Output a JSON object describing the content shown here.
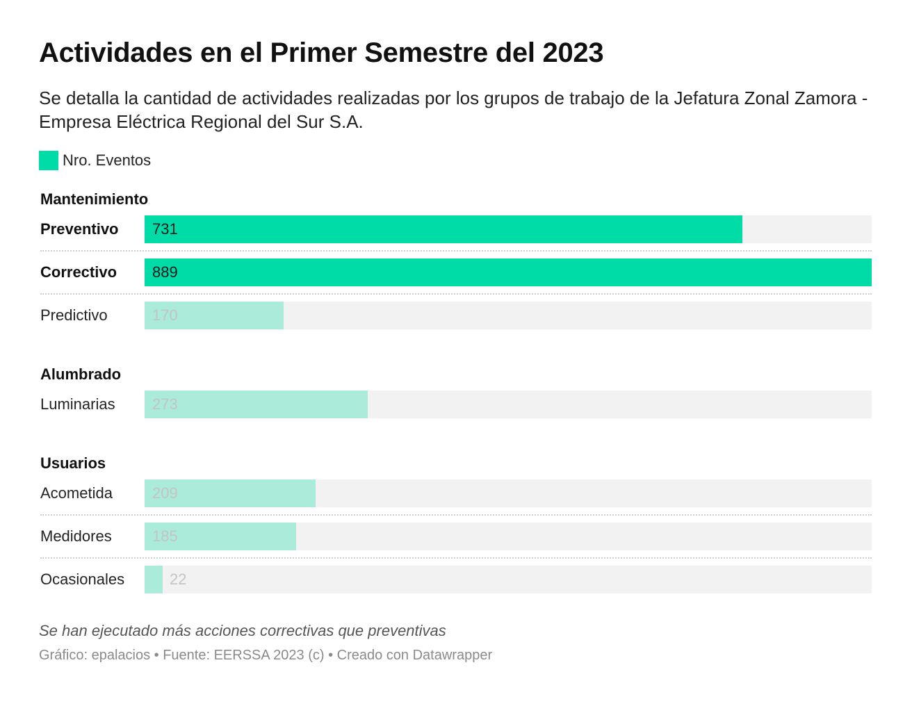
{
  "title": "Actividades en el Primer Semestre del 2023",
  "subtitle": "Se detalla la cantidad de actividades realizadas por los grupos de trabajo de la Jefatura Zonal Zamora - Empresa Eléctrica Regional del Sur S.A.",
  "legend": {
    "label": "Nro. Eventos",
    "color": "#00dca8"
  },
  "colors": {
    "highlight_bar": "#00dca8",
    "muted_bar": "#aaecd9",
    "track": "#f2f2f2",
    "highlight_value": "#1a1a1a",
    "muted_value": "#c4c4c4"
  },
  "chart_data": {
    "type": "bar",
    "orientation": "horizontal",
    "series": [
      {
        "name": "Nro. Eventos"
      }
    ],
    "xlim": [
      0,
      889
    ],
    "grid": false,
    "legend_position": "top-left",
    "groups": [
      {
        "name": "Mantenimiento",
        "rows": [
          {
            "label": "Preventivo",
            "value": 731,
            "highlight": true
          },
          {
            "label": "Correctivo",
            "value": 889,
            "highlight": true
          },
          {
            "label": "Predictivo",
            "value": 170,
            "highlight": false
          }
        ]
      },
      {
        "name": "Alumbrado",
        "rows": [
          {
            "label": "Luminarias",
            "value": 273,
            "highlight": false
          }
        ]
      },
      {
        "name": "Usuarios",
        "rows": [
          {
            "label": "Acometida",
            "value": 209,
            "highlight": false
          },
          {
            "label": "Medidores",
            "value": 185,
            "highlight": false
          },
          {
            "label": "Ocasionales",
            "value": 22,
            "highlight": false
          }
        ]
      }
    ]
  },
  "note": "Se han ejecutado más acciones correctivas que preventivas",
  "credits": "Gráfico: epalacios • Fuente: EERSSA 2023 (c) • Creado con Datawrapper"
}
